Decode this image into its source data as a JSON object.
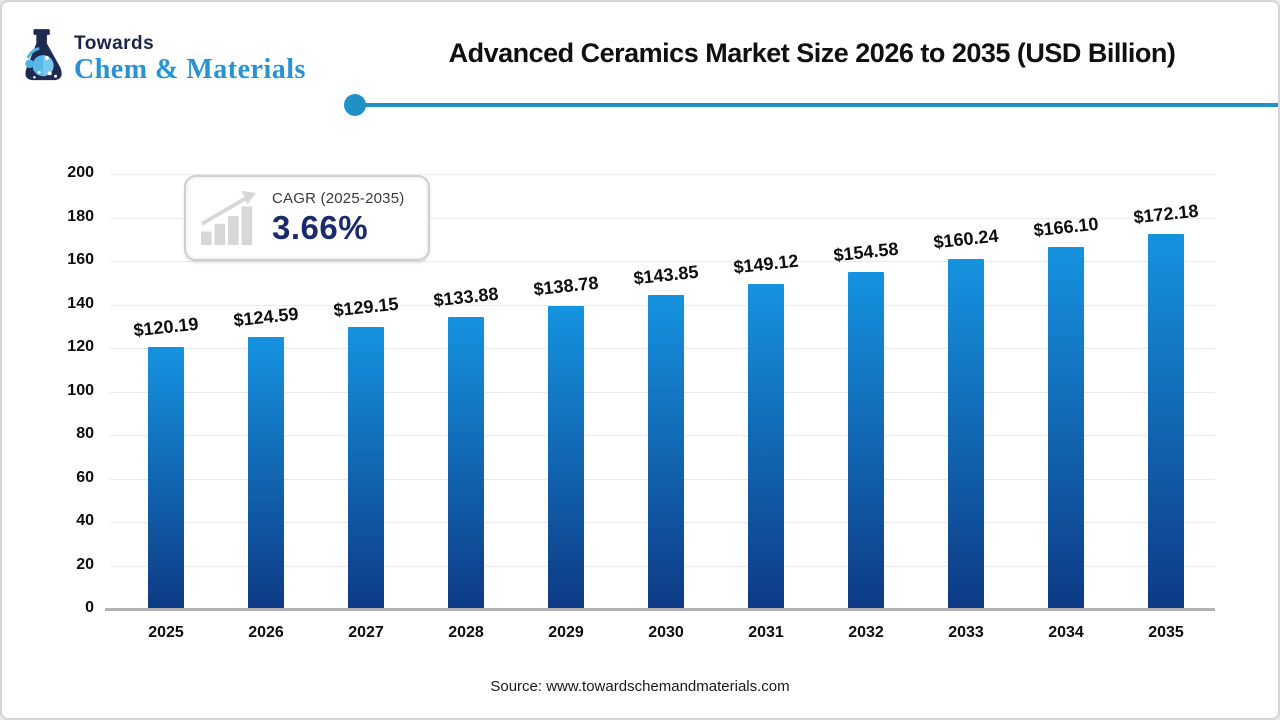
{
  "logo": {
    "towards": "Towards",
    "brand": "Chem & Materials"
  },
  "title": "Advanced Ceramics Market Size 2026 to 2035 (USD Billion)",
  "cagr": {
    "label": "CAGR (2025-2035)",
    "value": "3.66%"
  },
  "source": "Source: www.towardschemandmaterials.com",
  "colors": {
    "accent_line": "#1f91c6",
    "bar_top": "#1593e0",
    "bar_bottom": "#0e3a85",
    "navy": "#1b2a6b",
    "brand_blue": "#2793d2",
    "grid": "#ebebeb"
  },
  "chart_data": {
    "type": "bar",
    "title": "Advanced Ceramics Market Size 2026 to 2035 (USD Billion)",
    "categories": [
      "2025",
      "2026",
      "2027",
      "2028",
      "2029",
      "2030",
      "2031",
      "2032",
      "2033",
      "2034",
      "2035"
    ],
    "values": [
      120.19,
      124.59,
      129.15,
      133.88,
      138.78,
      143.85,
      149.12,
      154.58,
      160.24,
      166.1,
      172.18
    ],
    "bar_labels": [
      "$120.19",
      "$124.59",
      "$129.15",
      "$133.88",
      "$138.78",
      "$143.85",
      "$149.12",
      "$154.58",
      "$160.24",
      "$166.10",
      "$172.18"
    ],
    "xlabel": "",
    "ylabel": "",
    "ylim": [
      0,
      200
    ],
    "ytick_step": 20,
    "grid": true,
    "legend": "none"
  }
}
